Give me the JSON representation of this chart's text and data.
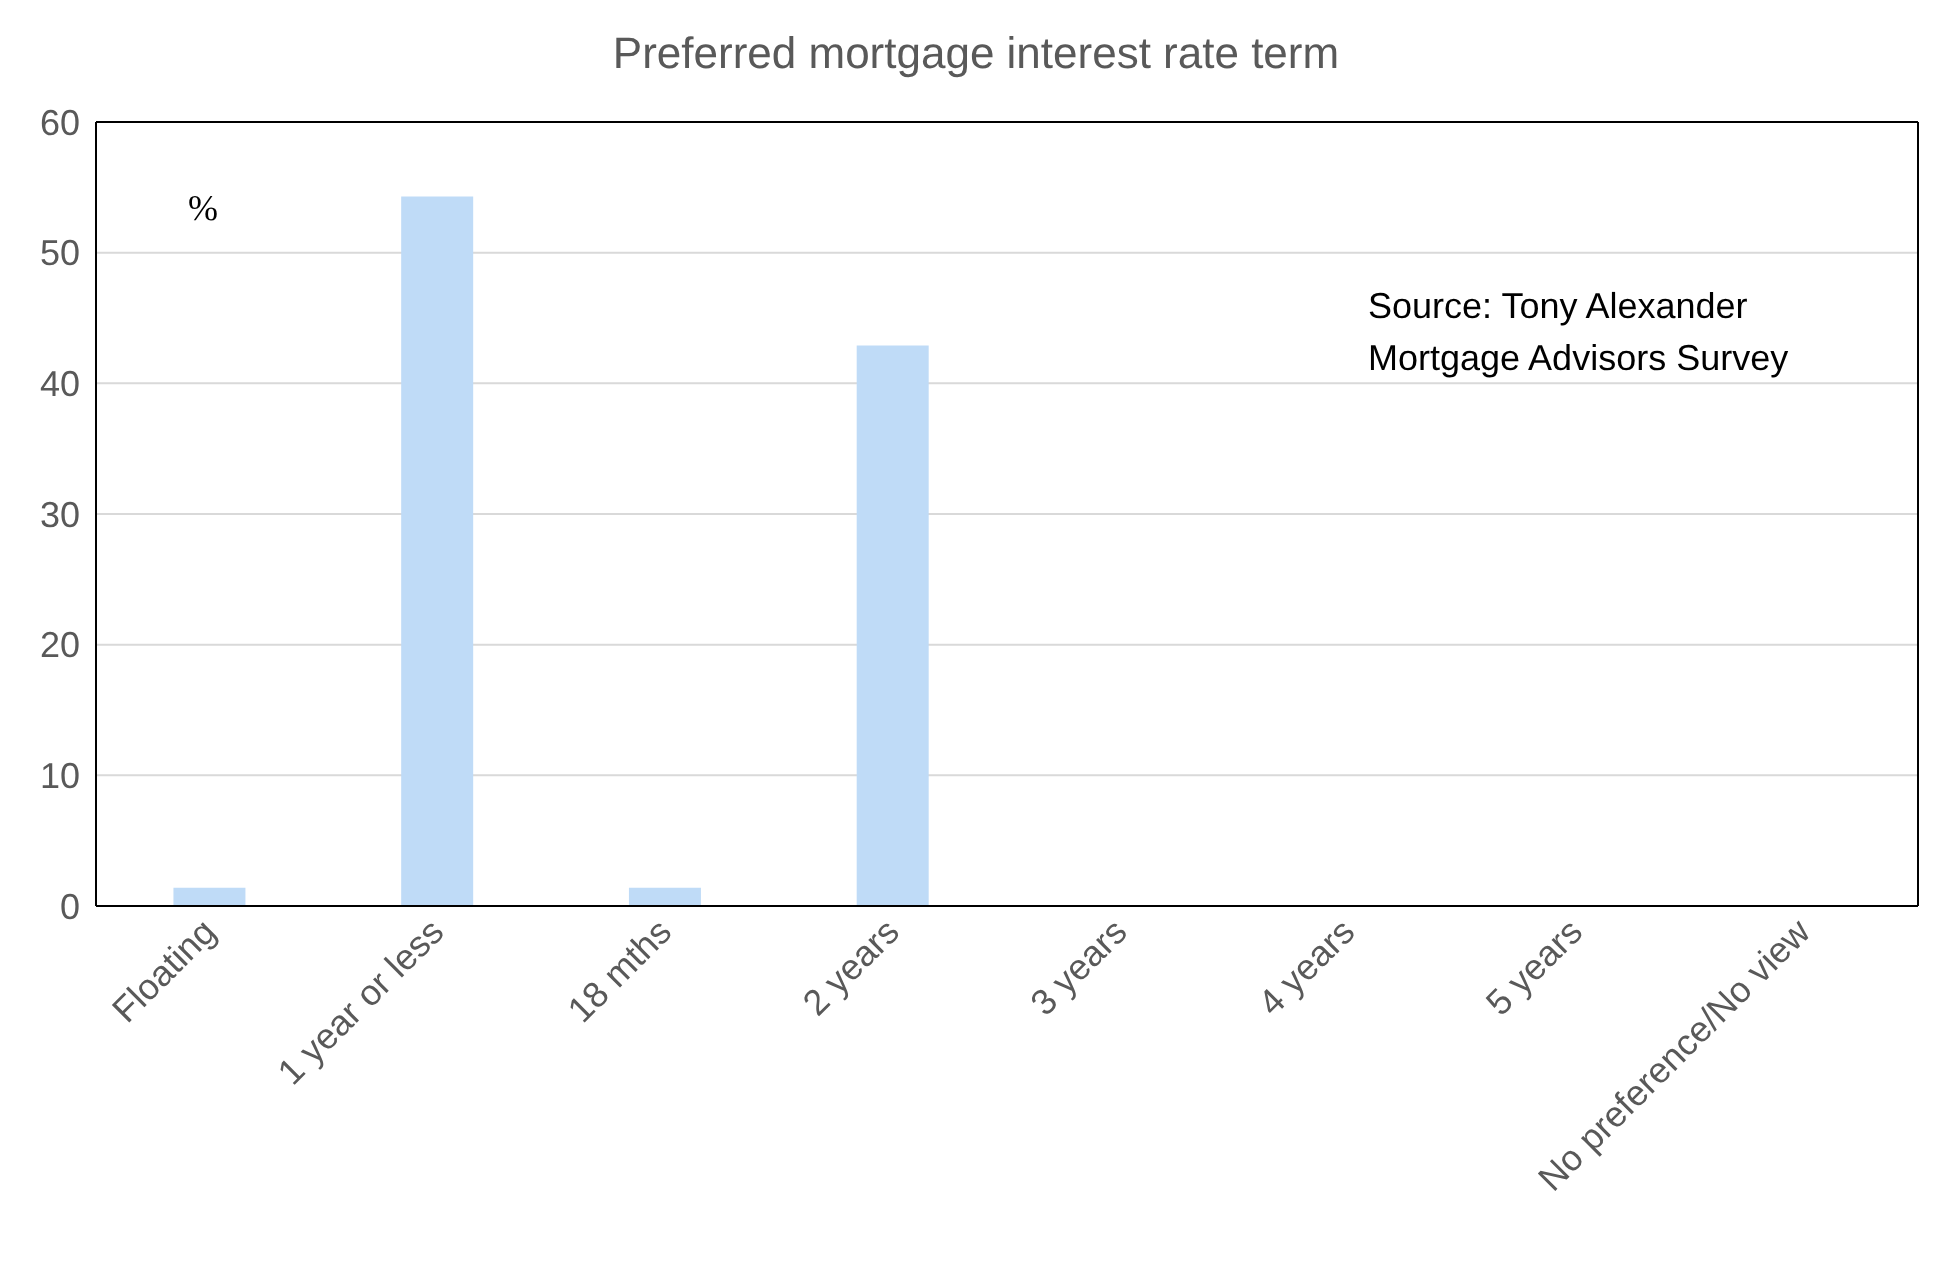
{
  "chart_data": {
    "type": "bar",
    "title": "Preferred mortgage interest rate term",
    "ylabel": "%",
    "categories": [
      "Floating",
      "1 year or less",
      "18 mths",
      "2 years",
      "3 years",
      "4 years",
      "5 years",
      "No preference/No view"
    ],
    "values": [
      1.4,
      54.3,
      1.4,
      42.9,
      0,
      0,
      0,
      0
    ],
    "color": "#bfdbf7",
    "ylim": [
      0,
      60
    ],
    "yticks": [
      0,
      10,
      20,
      30,
      40,
      50,
      60
    ],
    "grid": "y",
    "annotations": [
      "Source: Tony Alexander Mortgage Advisors Survey"
    ]
  }
}
